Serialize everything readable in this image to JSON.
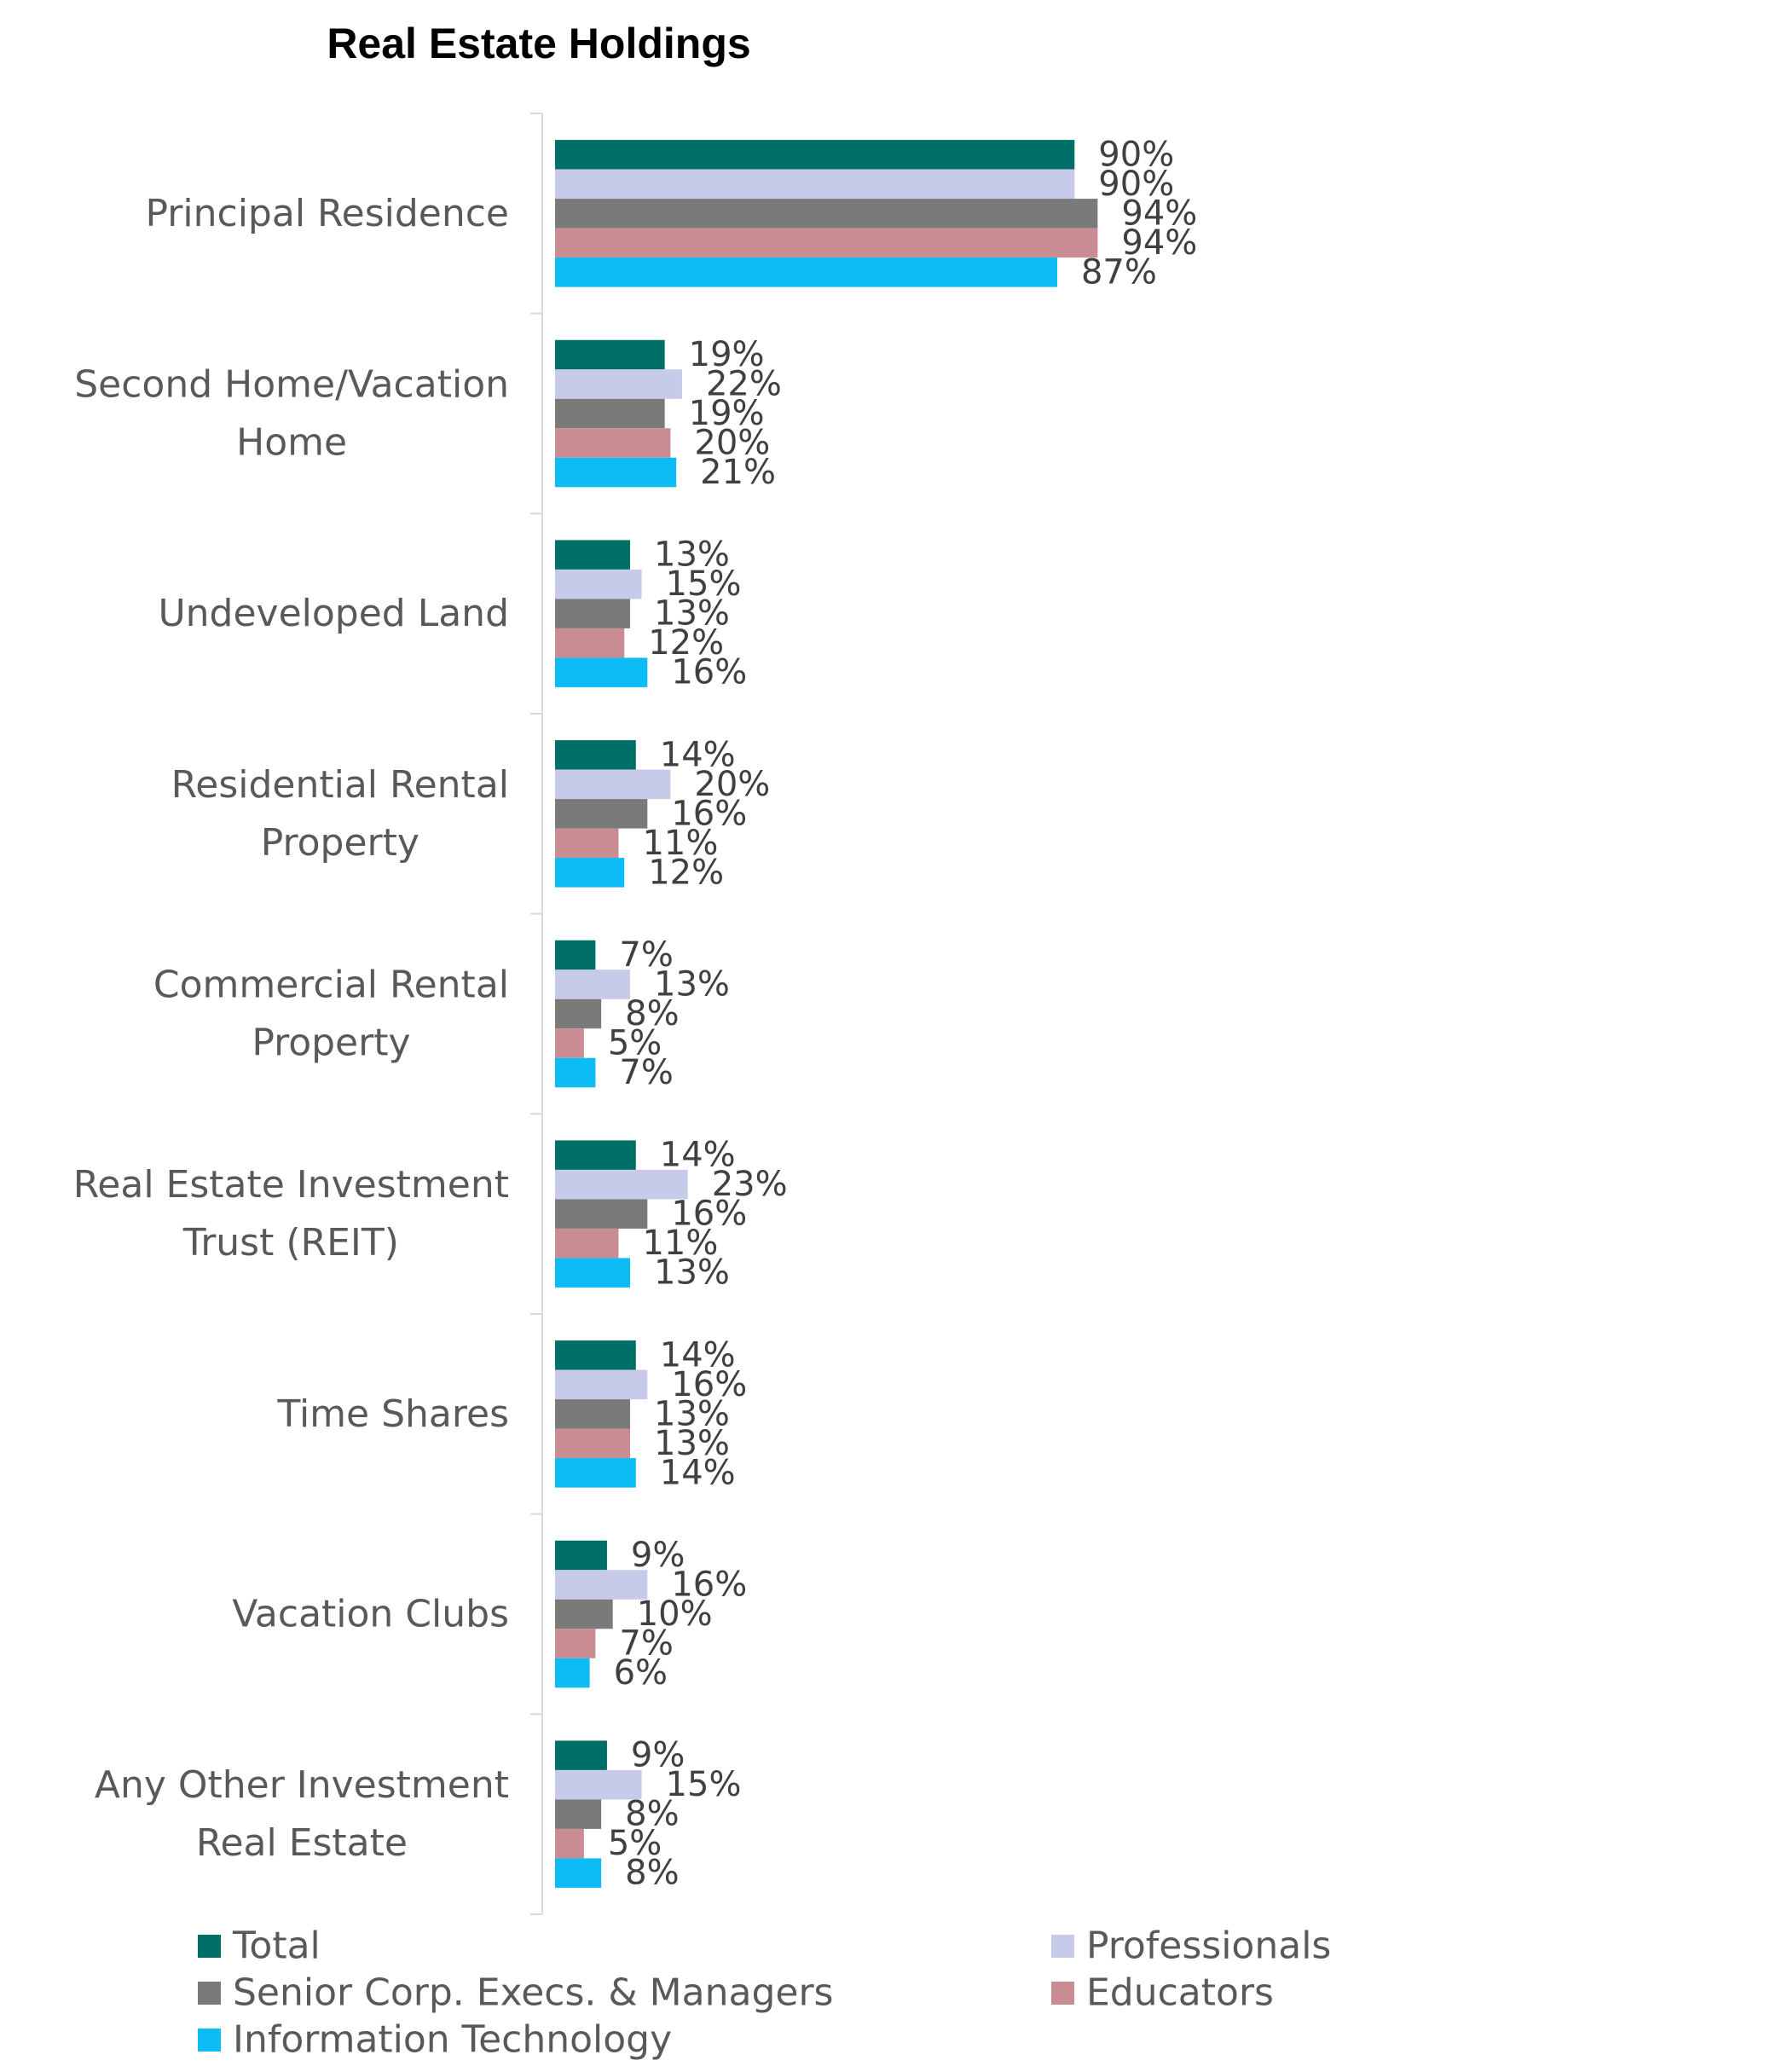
{
  "chart_data": {
    "type": "bar",
    "orientation": "horizontal",
    "title": "Real Estate Holdings",
    "categories": [
      "Principal Residence",
      "Second Home/Vacation Home",
      "Undeveloped Land",
      "Residential Rental Property",
      "Commercial Rental Property",
      "Real Estate Investment Trust (REIT)",
      "Time Shares",
      "Vacation Clubs",
      "Any Other Investment Real Estate"
    ],
    "category_lines": [
      [
        "Principal Residence"
      ],
      [
        "Second Home/Vacation",
        "Home"
      ],
      [
        "Undeveloped Land"
      ],
      [
        "Residential Rental",
        "Property"
      ],
      [
        "Commercial Rental",
        "Property"
      ],
      [
        "Real Estate Investment",
        "Trust (REIT)"
      ],
      [
        "Time Shares"
      ],
      [
        "Vacation Clubs"
      ],
      [
        "Any Other Investment",
        "Real Estate"
      ]
    ],
    "series": [
      {
        "name": "Total",
        "color": "#006F68",
        "values": [
          90,
          19,
          13,
          14,
          7,
          14,
          14,
          9,
          9
        ]
      },
      {
        "name": "Professionals",
        "color": "#C7CAE8",
        "values": [
          90,
          22,
          15,
          20,
          13,
          23,
          16,
          16,
          15
        ]
      },
      {
        "name": "Senior Corp. Execs. & Managers",
        "color": "#7A7A7A",
        "values": [
          94,
          19,
          13,
          16,
          8,
          16,
          13,
          10,
          8
        ]
      },
      {
        "name": "Educators",
        "color": "#C98C92",
        "values": [
          94,
          20,
          12,
          11,
          5,
          11,
          13,
          7,
          5
        ]
      },
      {
        "name": "Information Technology",
        "color": "#0DBBF5",
        "values": [
          87,
          21,
          16,
          12,
          7,
          13,
          14,
          6,
          8
        ]
      }
    ],
    "value_suffix": "%",
    "xlim": [
      0,
      100
    ],
    "grid": false,
    "legend_position": "bottom",
    "axis_color": "#D9D9D9"
  }
}
